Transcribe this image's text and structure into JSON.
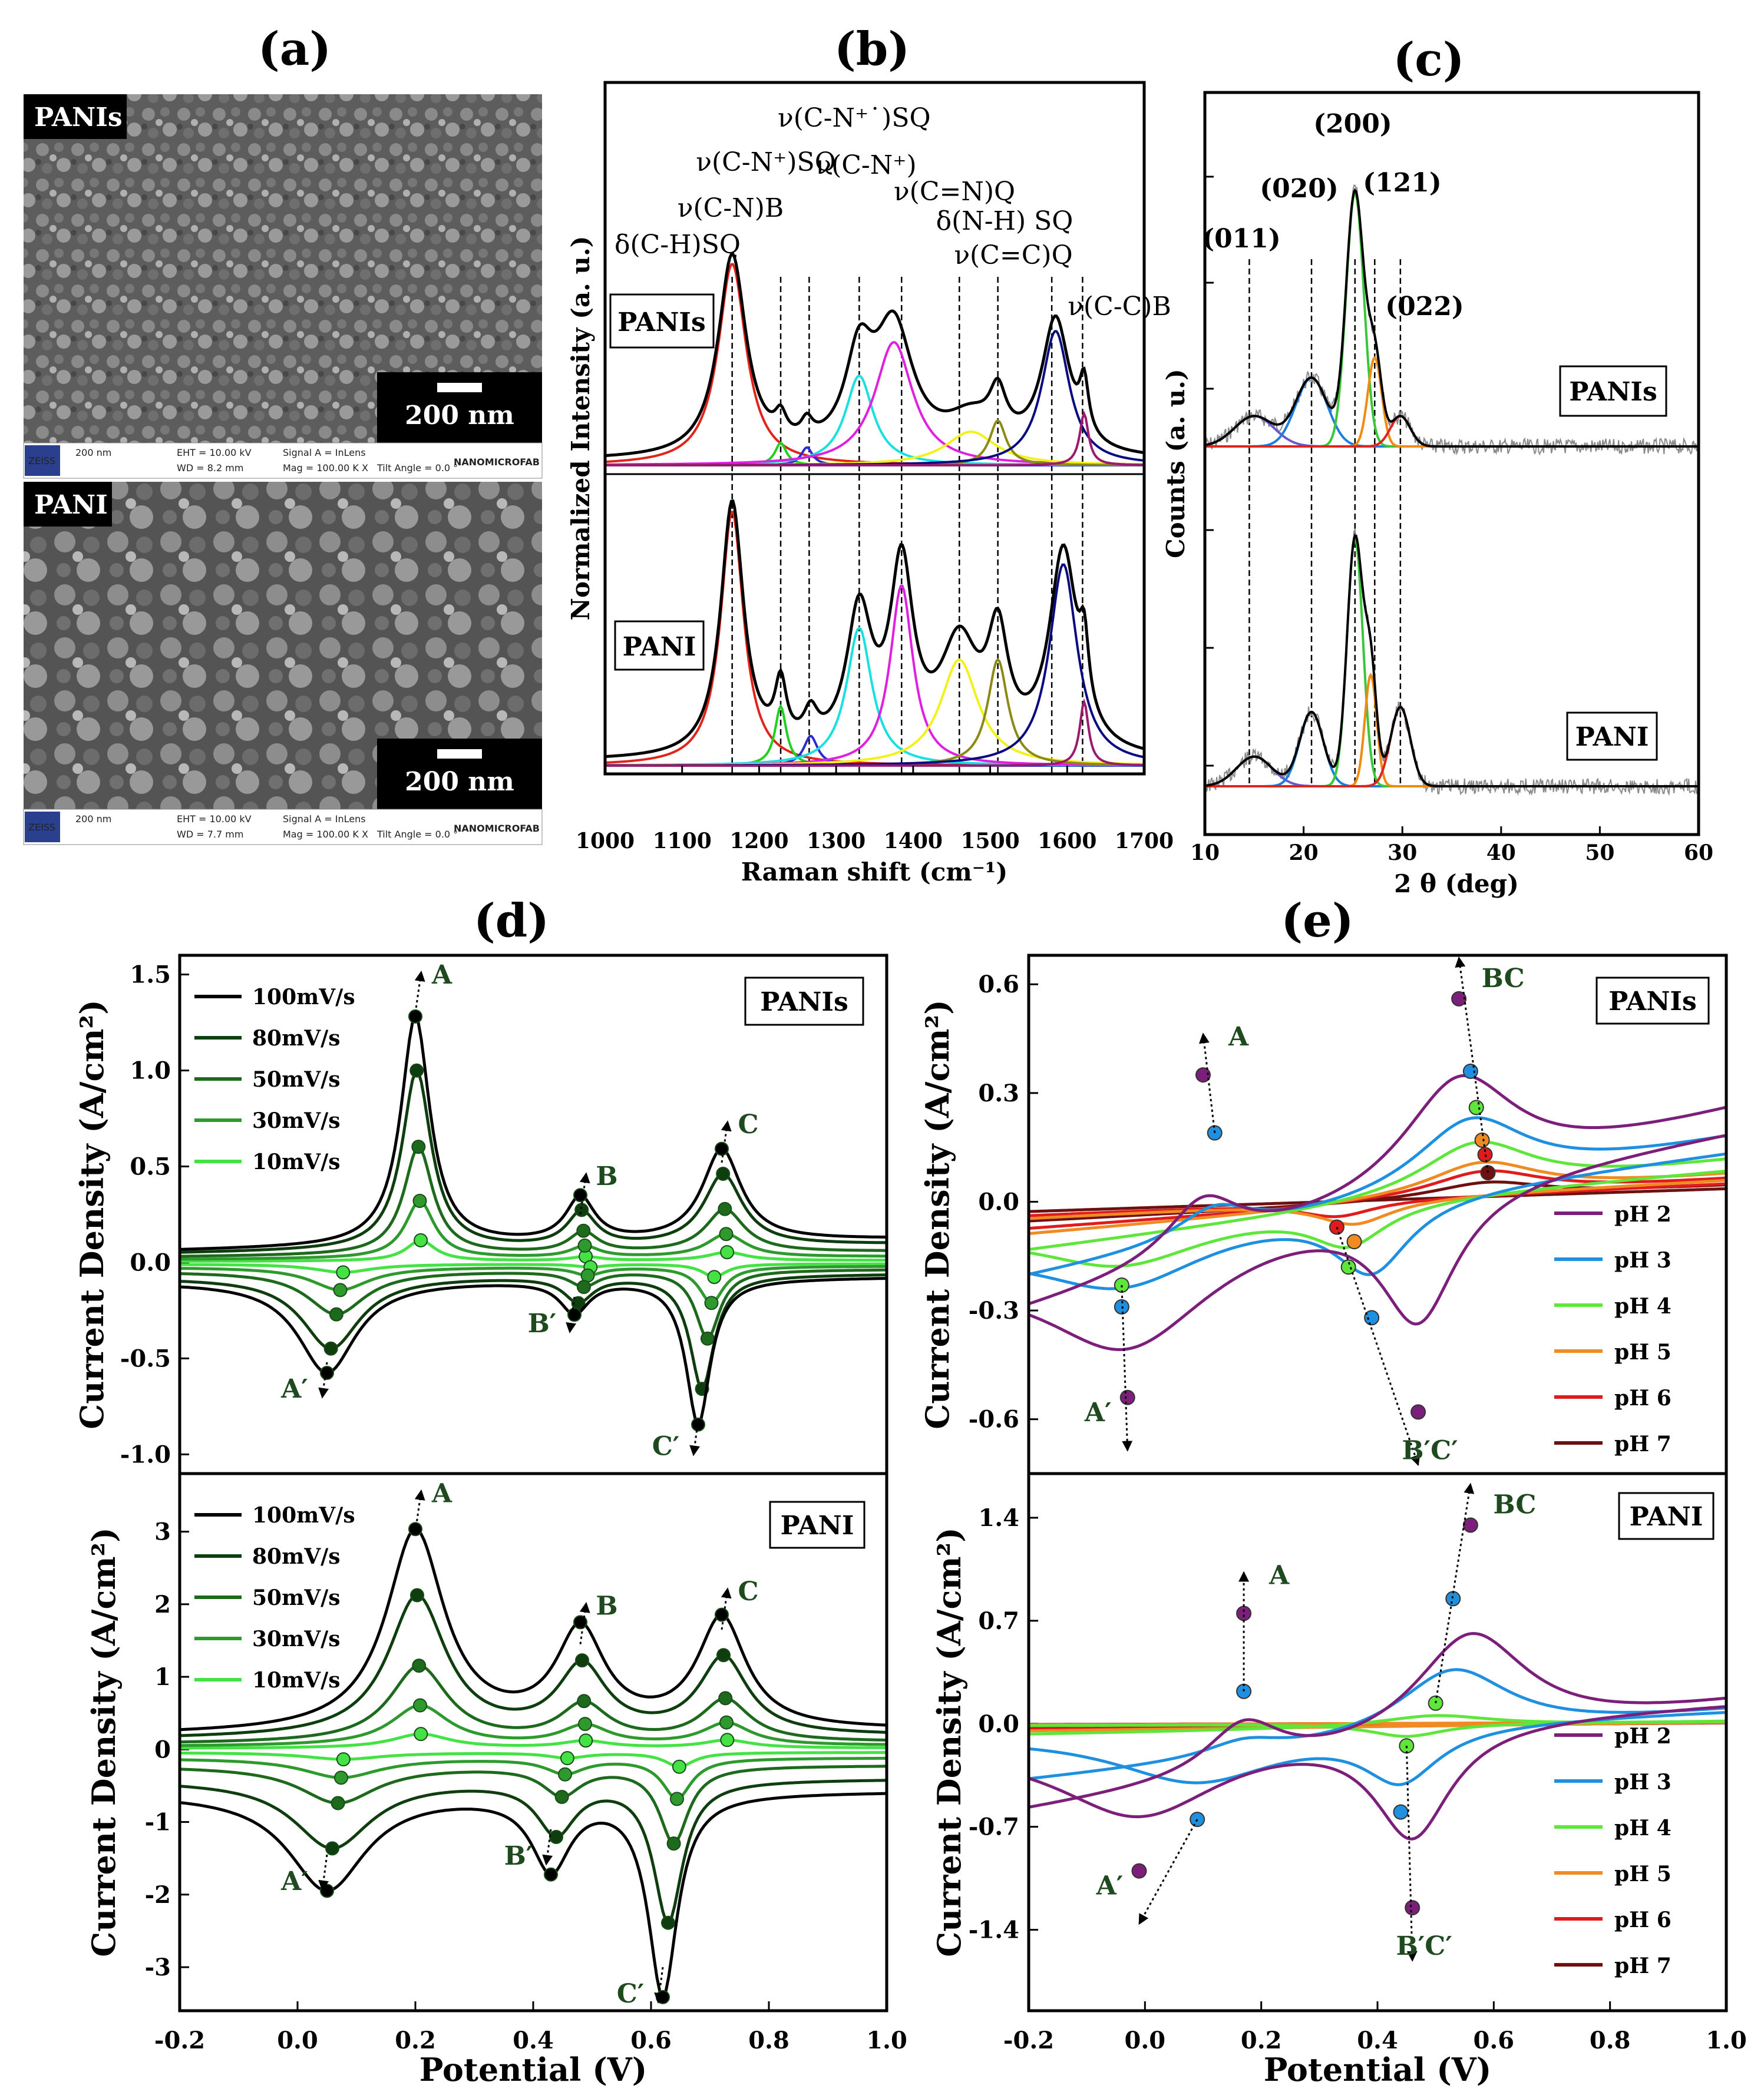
{
  "panel_labels": [
    "(a)",
    "(b)",
    "(c)",
    "(d)",
    "(e)"
  ],
  "sem": {
    "top_label": "PANIs",
    "bottom_label": "PANI",
    "scale_bar": "200 nm",
    "footer_top": {
      "scale": "200 nm",
      "eht": "EHT = 10.00 kV",
      "wd": "WD = 8.2 mm",
      "signal": "Signal A = InLens",
      "mag": "Mag = 100.00 K X",
      "tilt": "Tilt Angle = 0.0 °",
      "brand": "NANOMICROFAB",
      "zeiss": "ZEISS"
    },
    "footer_bottom": {
      "scale": "200 nm",
      "eht": "EHT = 10.00 kV",
      "wd": "WD = 7.7 mm",
      "signal": "Signal A = InLens",
      "mag": "Mag = 100.00 K X",
      "tilt": "Tilt Angle = 0.0 °",
      "brand": "NANOMICROFAB",
      "zeiss": "ZEISS"
    }
  },
  "chart_data": [
    {
      "id": "b",
      "type": "line",
      "xlabel": "Raman shift (cm⁻¹)",
      "ylabel": "Normalized Intensity (a. u.)",
      "xlim": [
        1000,
        1700
      ],
      "xticks": [
        1000,
        1100,
        1200,
        1300,
        1400,
        1500,
        1600,
        1700
      ],
      "sample_labels": [
        "PANIs",
        "PANI"
      ],
      "band_labels": [
        {
          "text": "δ(C-H)SQ",
          "x": 1165
        },
        {
          "text": "ν(C-N)B",
          "x": 1228
        },
        {
          "text": "ν(C-N⁺)SQ",
          "x": 1265
        },
        {
          "text": "ν(C-N⁺˙)SQ",
          "x": 1330
        },
        {
          "text": "ν(C-N⁺)",
          "x": 1385
        },
        {
          "text": "ν(C=N)Q",
          "x": 1460
        },
        {
          "text": "δ(N-H) SQ",
          "x": 1510
        },
        {
          "text": "ν(C=C)Q",
          "x": 1580
        },
        {
          "text": "ν(C-C)B",
          "x": 1620
        }
      ],
      "peak_positions": [
        1165,
        1228,
        1265,
        1330,
        1385,
        1460,
        1510,
        1580,
        1620
      ],
      "series_colors": [
        "#e0241b",
        "#1fd01f",
        "#2b2bd0",
        "#19e0e0",
        "#e020e0",
        "#f2f21a",
        "#8a8a14",
        "#0a0a80",
        "#9b1a6e"
      ],
      "components_top": [
        {
          "center": 1165,
          "height": 0.9,
          "width": 22
        },
        {
          "center": 1228,
          "height": 0.1,
          "width": 9
        },
        {
          "center": 1262,
          "height": 0.08,
          "width": 9
        },
        {
          "center": 1330,
          "height": 0.4,
          "width": 22
        },
        {
          "center": 1375,
          "height": 0.55,
          "width": 30
        },
        {
          "center": 1475,
          "height": 0.15,
          "width": 40
        },
        {
          "center": 1510,
          "height": 0.2,
          "width": 13
        },
        {
          "center": 1585,
          "height": 0.6,
          "width": 22
        },
        {
          "center": 1622,
          "height": 0.23,
          "width": 7
        }
      ],
      "components_bottom": [
        {
          "center": 1165,
          "height": 1.2,
          "width": 18
        },
        {
          "center": 1228,
          "height": 0.28,
          "width": 9
        },
        {
          "center": 1267,
          "height": 0.14,
          "width": 11
        },
        {
          "center": 1330,
          "height": 0.65,
          "width": 20
        },
        {
          "center": 1385,
          "height": 0.85,
          "width": 18
        },
        {
          "center": 1460,
          "height": 0.5,
          "width": 30
        },
        {
          "center": 1510,
          "height": 0.5,
          "width": 16
        },
        {
          "center": 1595,
          "height": 0.95,
          "width": 22
        },
        {
          "center": 1622,
          "height": 0.3,
          "width": 7
        }
      ]
    },
    {
      "id": "c",
      "type": "line",
      "xlabel": "2 θ (deg)",
      "ylabel": "Counts (a. u.)",
      "xlim": [
        10,
        60
      ],
      "xticks": [
        10,
        20,
        30,
        40,
        50,
        60
      ],
      "sample_labels": [
        "PANIs",
        "PANI"
      ],
      "reflections": [
        {
          "text": "(011)",
          "x": 14.5
        },
        {
          "text": "(020)",
          "x": 20.8
        },
        {
          "text": "(200)",
          "x": 25.2
        },
        {
          "text": "(121)",
          "x": 27.2
        },
        {
          "text": "(022)",
          "x": 29.8
        }
      ],
      "components_top": [
        {
          "center": 15.0,
          "height": 0.12,
          "width": 2.0,
          "color": "#6a5acd"
        },
        {
          "center": 20.8,
          "height": 0.27,
          "width": 1.6,
          "color": "#1a7fe0"
        },
        {
          "center": 25.2,
          "height": 1.0,
          "width": 0.9,
          "color": "#39c739"
        },
        {
          "center": 27.2,
          "height": 0.35,
          "width": 0.7,
          "color": "#f08a10"
        },
        {
          "center": 29.8,
          "height": 0.12,
          "width": 1.0,
          "color": "#e0241b"
        }
      ],
      "components_bottom": [
        {
          "center": 15.0,
          "height": 0.12,
          "width": 1.8,
          "color": "#6a5acd"
        },
        {
          "center": 20.8,
          "height": 0.3,
          "width": 1.2,
          "color": "#1a7fe0"
        },
        {
          "center": 25.2,
          "height": 1.0,
          "width": 0.8,
          "color": "#39c739"
        },
        {
          "center": 26.8,
          "height": 0.45,
          "width": 0.6,
          "color": "#f08a10"
        },
        {
          "center": 29.8,
          "height": 0.32,
          "width": 1.0,
          "color": "#e0241b"
        }
      ]
    },
    {
      "id": "d",
      "type": "line",
      "xlabel": "Potential (V)",
      "ylabel": "Current Density (A/cm²)",
      "xlim": [
        -0.2,
        1.0
      ],
      "xticks": [
        -0.2,
        0.0,
        0.2,
        0.4,
        0.6,
        0.8,
        1.0
      ],
      "xtick_labels": [
        "-0.2",
        "0.0",
        "0.2",
        "0.4",
        "0.6",
        "0.8",
        "1.0"
      ],
      "legend": [
        "100mV/s",
        "80mV/s",
        "50mV/s",
        "30mV/s",
        "10mV/s"
      ],
      "legend_position": "top-left",
      "colors": [
        "#000000",
        "#0e3d0e",
        "#1d6a1d",
        "#2e9a2e",
        "#44e244"
      ],
      "top": {
        "label": "PANIs",
        "ylim": [
          -1.1,
          1.6
        ],
        "yticks": [
          -1.0,
          -0.5,
          0.0,
          0.5,
          1.0,
          1.5
        ],
        "ytick_labels": [
          "-1.0",
          "-0.5",
          "0.0",
          "0.5",
          "1.0",
          "1.5"
        ],
        "scale_factors": [
          1.0,
          0.78,
          0.47,
          0.25,
          0.09
        ],
        "anodic_peaks": [
          {
            "name": "A",
            "v": 0.2,
            "i": 1.3
          },
          {
            "name": "B",
            "v": 0.48,
            "i": 0.25
          },
          {
            "name": "C",
            "v": 0.72,
            "i": 0.52
          }
        ],
        "cathodic_peaks": [
          {
            "name": "A′",
            "v": 0.05,
            "i": -0.52
          },
          {
            "name": "B′",
            "v": 0.47,
            "i": -0.18
          },
          {
            "name": "C′",
            "v": 0.68,
            "i": -0.82
          }
        ]
      },
      "bottom": {
        "label": "PANI",
        "ylim": [
          -3.6,
          3.8
        ],
        "yticks": [
          -3,
          -2,
          -1,
          0,
          1,
          2,
          3
        ],
        "ytick_labels": [
          "-3",
          "-2",
          "-1",
          "0",
          "1",
          "2",
          "3"
        ],
        "scale_factors": [
          1.0,
          0.7,
          0.38,
          0.2,
          0.07
        ],
        "anodic_peaks": [
          {
            "name": "A",
            "v": 0.2,
            "i": 3.0
          },
          {
            "name": "B",
            "v": 0.48,
            "i": 1.45
          },
          {
            "name": "C",
            "v": 0.72,
            "i": 1.65
          }
        ],
        "cathodic_peaks": [
          {
            "name": "A′",
            "v": 0.05,
            "i": -1.45
          },
          {
            "name": "B′",
            "v": 0.43,
            "i": -1.1
          },
          {
            "name": "C′",
            "v": 0.62,
            "i": -3.0
          }
        ]
      }
    },
    {
      "id": "e",
      "type": "line",
      "xlabel": "Potential (V)",
      "ylabel": "Current Density (A/cm²)",
      "xlim": [
        -0.2,
        1.0
      ],
      "xticks": [
        -0.2,
        0.0,
        0.2,
        0.4,
        0.6,
        0.8,
        1.0
      ],
      "xtick_labels": [
        "-0.2",
        "0.0",
        "0.2",
        "0.4",
        "0.6",
        "0.8",
        "1.0"
      ],
      "legend": [
        "pH 2",
        "pH 3",
        "pH 4",
        "pH 5",
        "pH 6",
        "pH 7"
      ],
      "legend_position": "right",
      "colors": [
        "#7b1f7b",
        "#1f8fe0",
        "#5ee63a",
        "#f08a22",
        "#e01b1b",
        "#6e1010"
      ],
      "top": {
        "label": "PANIs",
        "ylim": [
          -0.75,
          0.68
        ],
        "yticks": [
          -0.6,
          -0.3,
          0.0,
          0.3,
          0.6
        ],
        "ytick_labels": [
          "-0.6",
          "-0.3",
          "0.0",
          "0.3",
          "0.6"
        ],
        "anodic_A": [
          [
            0.1,
            0.35
          ],
          [
            0.12,
            0.19
          ]
        ],
        "anodic_BC": [
          [
            0.54,
            0.56
          ],
          [
            0.56,
            0.36
          ],
          [
            0.57,
            0.26
          ],
          [
            0.58,
            0.17
          ],
          [
            0.585,
            0.13
          ],
          [
            0.59,
            0.08
          ]
        ],
        "cathodic_A": [
          [
            -0.03,
            -0.54
          ],
          [
            -0.04,
            -0.29
          ],
          [
            -0.04,
            -0.23
          ]
        ],
        "cathodic_BC": [
          [
            0.47,
            -0.58
          ],
          [
            0.39,
            -0.32
          ],
          [
            0.35,
            -0.18
          ],
          [
            0.36,
            -0.11
          ],
          [
            0.33,
            -0.07
          ]
        ],
        "peak_names": [
          "A",
          "BC",
          "A′",
          "B′C′"
        ]
      },
      "bottom": {
        "label": "PANI",
        "ylim": [
          -1.95,
          1.7
        ],
        "yticks": [
          -1.4,
          -0.7,
          0.0,
          0.7,
          1.4
        ],
        "ytick_labels": [
          "-1.4",
          "-0.7",
          "0.0",
          "0.7",
          "1.4"
        ],
        "anodic_A": [
          [
            0.17,
            0.75
          ],
          [
            0.17,
            0.22
          ]
        ],
        "anodic_BC": [
          [
            0.56,
            1.35
          ],
          [
            0.53,
            0.85
          ],
          [
            0.5,
            0.14
          ]
        ],
        "cathodic_A": [
          [
            -0.01,
            -1.0
          ],
          [
            0.09,
            -0.65
          ]
        ],
        "cathodic_BC": [
          [
            0.46,
            -1.25
          ],
          [
            0.44,
            -0.6
          ],
          [
            0.45,
            -0.15
          ]
        ],
        "peak_names": [
          "A",
          "BC",
          "A′",
          "B′C′"
        ]
      }
    }
  ]
}
